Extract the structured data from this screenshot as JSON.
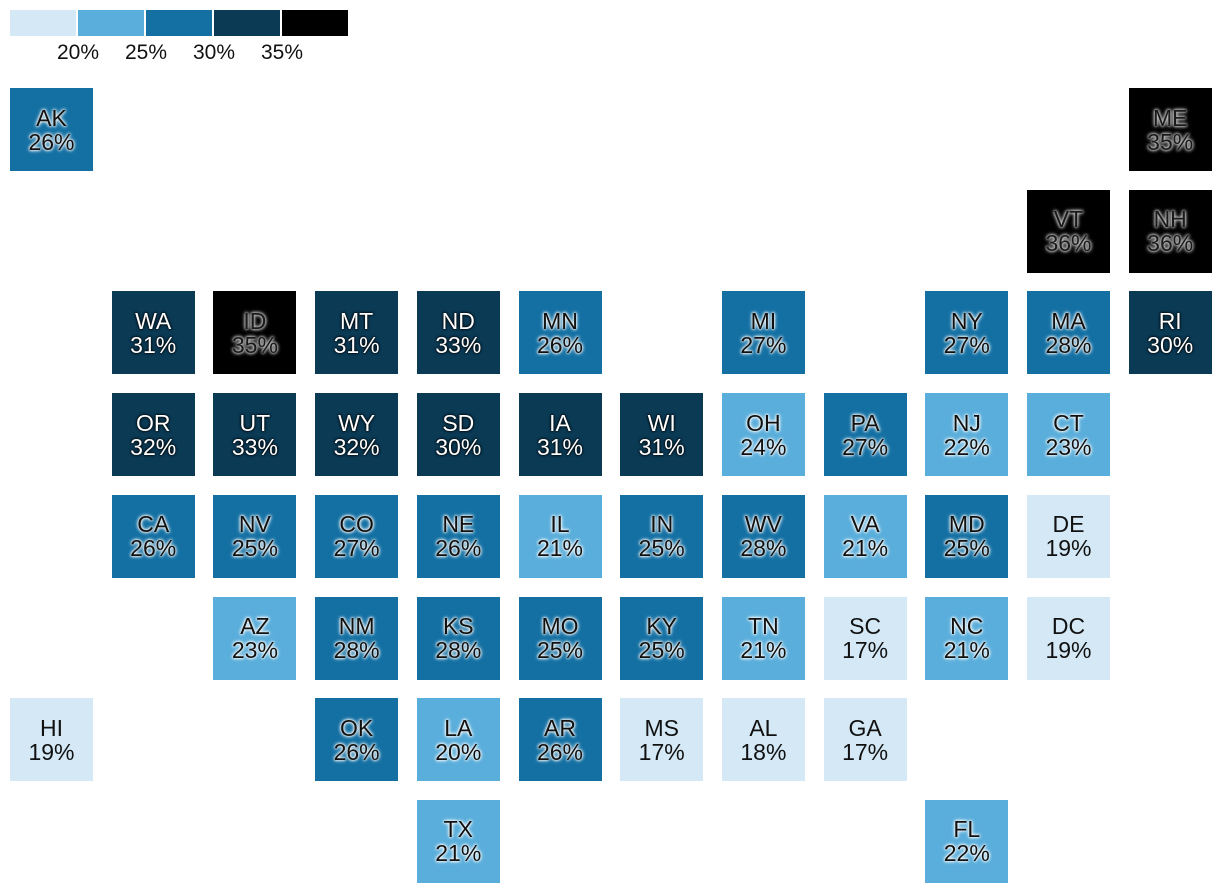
{
  "legend": {
    "colors": [
      "#d4e9f5",
      "#5aaedb",
      "#1470a3",
      "#0b3a55",
      "#000000"
    ],
    "labels": [
      "20%",
      "25%",
      "30%",
      "35%"
    ]
  },
  "states": [
    {
      "abbr": "AK",
      "value": 26,
      "label": "26%",
      "col": 0,
      "row": 0
    },
    {
      "abbr": "ME",
      "value": 35,
      "label": "35%",
      "col": 11,
      "row": 0
    },
    {
      "abbr": "VT",
      "value": 36,
      "label": "36%",
      "col": 10,
      "row": 1
    },
    {
      "abbr": "NH",
      "value": 36,
      "label": "36%",
      "col": 11,
      "row": 1
    },
    {
      "abbr": "WA",
      "value": 31,
      "label": "31%",
      "col": 1,
      "row": 2
    },
    {
      "abbr": "ID",
      "value": 35,
      "label": "35%",
      "col": 2,
      "row": 2
    },
    {
      "abbr": "MT",
      "value": 31,
      "label": "31%",
      "col": 3,
      "row": 2
    },
    {
      "abbr": "ND",
      "value": 33,
      "label": "33%",
      "col": 4,
      "row": 2
    },
    {
      "abbr": "MN",
      "value": 26,
      "label": "26%",
      "col": 5,
      "row": 2
    },
    {
      "abbr": "MI",
      "value": 27,
      "label": "27%",
      "col": 7,
      "row": 2
    },
    {
      "abbr": "NY",
      "value": 27,
      "label": "27%",
      "col": 9,
      "row": 2
    },
    {
      "abbr": "MA",
      "value": 28,
      "label": "28%",
      "col": 10,
      "row": 2
    },
    {
      "abbr": "RI",
      "value": 30,
      "label": "30%",
      "col": 11,
      "row": 2
    },
    {
      "abbr": "OR",
      "value": 32,
      "label": "32%",
      "col": 1,
      "row": 3
    },
    {
      "abbr": "UT",
      "value": 33,
      "label": "33%",
      "col": 2,
      "row": 3
    },
    {
      "abbr": "WY",
      "value": 32,
      "label": "32%",
      "col": 3,
      "row": 3
    },
    {
      "abbr": "SD",
      "value": 30,
      "label": "30%",
      "col": 4,
      "row": 3
    },
    {
      "abbr": "IA",
      "value": 31,
      "label": "31%",
      "col": 5,
      "row": 3
    },
    {
      "abbr": "WI",
      "value": 31,
      "label": "31%",
      "col": 6,
      "row": 3
    },
    {
      "abbr": "OH",
      "value": 24,
      "label": "24%",
      "col": 7,
      "row": 3
    },
    {
      "abbr": "PA",
      "value": 27,
      "label": "27%",
      "col": 8,
      "row": 3
    },
    {
      "abbr": "NJ",
      "value": 22,
      "label": "22%",
      "col": 9,
      "row": 3
    },
    {
      "abbr": "CT",
      "value": 23,
      "label": "23%",
      "col": 10,
      "row": 3
    },
    {
      "abbr": "CA",
      "value": 26,
      "label": "26%",
      "col": 1,
      "row": 4
    },
    {
      "abbr": "NV",
      "value": 25,
      "label": "25%",
      "col": 2,
      "row": 4
    },
    {
      "abbr": "CO",
      "value": 27,
      "label": "27%",
      "col": 3,
      "row": 4
    },
    {
      "abbr": "NE",
      "value": 26,
      "label": "26%",
      "col": 4,
      "row": 4
    },
    {
      "abbr": "IL",
      "value": 21,
      "label": "21%",
      "col": 5,
      "row": 4
    },
    {
      "abbr": "IN",
      "value": 25,
      "label": "25%",
      "col": 6,
      "row": 4
    },
    {
      "abbr": "WV",
      "value": 28,
      "label": "28%",
      "col": 7,
      "row": 4
    },
    {
      "abbr": "VA",
      "value": 21,
      "label": "21%",
      "col": 8,
      "row": 4
    },
    {
      "abbr": "MD",
      "value": 25,
      "label": "25%",
      "col": 9,
      "row": 4
    },
    {
      "abbr": "DE",
      "value": 19,
      "label": "19%",
      "col": 10,
      "row": 4
    },
    {
      "abbr": "AZ",
      "value": 23,
      "label": "23%",
      "col": 2,
      "row": 5
    },
    {
      "abbr": "NM",
      "value": 28,
      "label": "28%",
      "col": 3,
      "row": 5
    },
    {
      "abbr": "KS",
      "value": 28,
      "label": "28%",
      "col": 4,
      "row": 5
    },
    {
      "abbr": "MO",
      "value": 25,
      "label": "25%",
      "col": 5,
      "row": 5
    },
    {
      "abbr": "KY",
      "value": 25,
      "label": "25%",
      "col": 6,
      "row": 5
    },
    {
      "abbr": "TN",
      "value": 21,
      "label": "21%",
      "col": 7,
      "row": 5
    },
    {
      "abbr": "SC",
      "value": 17,
      "label": "17%",
      "col": 8,
      "row": 5
    },
    {
      "abbr": "NC",
      "value": 21,
      "label": "21%",
      "col": 9,
      "row": 5
    },
    {
      "abbr": "DC",
      "value": 19,
      "label": "19%",
      "col": 10,
      "row": 5
    },
    {
      "abbr": "HI",
      "value": 19,
      "label": "19%",
      "col": 0,
      "row": 6
    },
    {
      "abbr": "OK",
      "value": 26,
      "label": "26%",
      "col": 3,
      "row": 6
    },
    {
      "abbr": "LA",
      "value": 20,
      "label": "20%",
      "col": 4,
      "row": 6
    },
    {
      "abbr": "AR",
      "value": 26,
      "label": "26%",
      "col": 5,
      "row": 6
    },
    {
      "abbr": "MS",
      "value": 17,
      "label": "17%",
      "col": 6,
      "row": 6
    },
    {
      "abbr": "AL",
      "value": 18,
      "label": "18%",
      "col": 7,
      "row": 6
    },
    {
      "abbr": "GA",
      "value": 17,
      "label": "17%",
      "col": 8,
      "row": 6
    },
    {
      "abbr": "TX",
      "value": 21,
      "label": "21%",
      "col": 4,
      "row": 7
    },
    {
      "abbr": "FL",
      "value": 22,
      "label": "22%",
      "col": 9,
      "row": 7
    }
  ]
}
